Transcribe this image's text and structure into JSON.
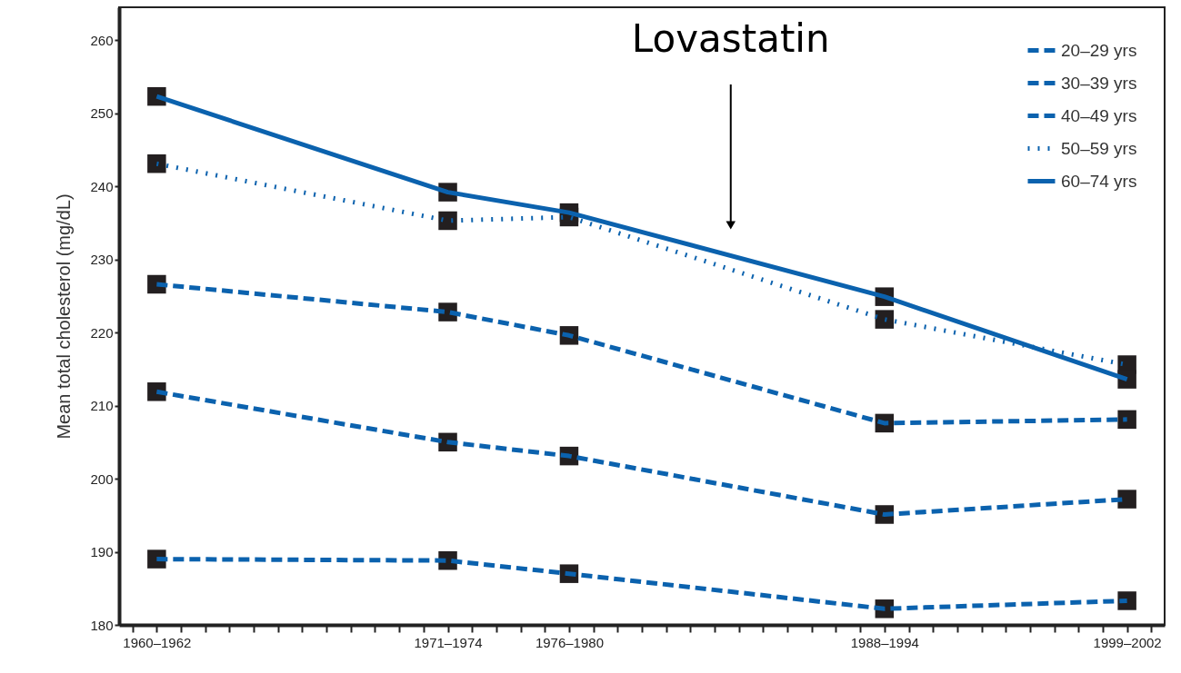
{
  "chart_data": {
    "type": "line",
    "ylabel": "Mean total cholesterol (mg/dL)",
    "categories": [
      null,
      "1960–1962",
      null,
      null,
      null,
      null,
      null,
      null,
      null,
      null,
      null,
      null,
      null,
      "1971–1974",
      null,
      null,
      null,
      null,
      "1976–1980",
      null,
      null,
      null,
      null,
      null,
      null,
      null,
      null,
      null,
      null,
      null,
      null,
      "1988–1994",
      null,
      null,
      null,
      null,
      null,
      null,
      null,
      null,
      null,
      "1999–2002",
      null
    ],
    "series": [
      {
        "name": "20–29 yrs",
        "color": "#0b62ae",
        "line_style": "dashed",
        "values": [
          null,
          189,
          null,
          null,
          null,
          null,
          null,
          null,
          null,
          null,
          null,
          null,
          null,
          188.8,
          null,
          null,
          null,
          null,
          187,
          null,
          null,
          null,
          null,
          null,
          null,
          null,
          null,
          null,
          null,
          null,
          null,
          182.2,
          null,
          null,
          null,
          null,
          null,
          null,
          null,
          null,
          null,
          183.3,
          null
        ]
      },
      {
        "name": "30–39 yrs",
        "color": "#0b62ae",
        "line_style": "dashed",
        "values": [
          null,
          211.9,
          null,
          null,
          null,
          null,
          null,
          null,
          null,
          null,
          null,
          null,
          null,
          205,
          null,
          null,
          null,
          null,
          203.1,
          null,
          null,
          null,
          null,
          null,
          null,
          null,
          null,
          null,
          null,
          null,
          null,
          195.1,
          null,
          null,
          null,
          null,
          null,
          null,
          null,
          null,
          null,
          197.2,
          null
        ]
      },
      {
        "name": "40–49 yrs",
        "color": "#0b62ae",
        "line_style": "dashed",
        "values": [
          null,
          226.6,
          null,
          null,
          null,
          null,
          null,
          null,
          null,
          null,
          null,
          null,
          null,
          222.8,
          null,
          null,
          null,
          null,
          219.6,
          null,
          null,
          null,
          null,
          null,
          null,
          null,
          null,
          null,
          null,
          null,
          null,
          207.6,
          null,
          null,
          null,
          null,
          null,
          null,
          null,
          null,
          null,
          208.1,
          null
        ]
      },
      {
        "name": "50–59 yrs",
        "color": "#0b62ae",
        "line_style": "dotted",
        "values": [
          null,
          243.1,
          null,
          null,
          null,
          null,
          null,
          null,
          null,
          null,
          null,
          null,
          null,
          235.3,
          null,
          null,
          null,
          null,
          235.8,
          null,
          null,
          null,
          null,
          null,
          null,
          null,
          null,
          null,
          null,
          null,
          null,
          221.8,
          null,
          null,
          null,
          null,
          null,
          null,
          null,
          null,
          null,
          215.6,
          null
        ]
      },
      {
        "name": "60–74 yrs",
        "color": "#0b62ae",
        "line_style": "solid",
        "values": [
          null,
          252.3,
          null,
          null,
          null,
          null,
          null,
          null,
          null,
          null,
          null,
          null,
          null,
          239.2,
          null,
          null,
          null,
          null,
          236.4,
          null,
          null,
          null,
          null,
          null,
          null,
          null,
          null,
          null,
          null,
          null,
          null,
          224.9,
          null,
          null,
          null,
          null,
          null,
          null,
          null,
          null,
          null,
          213.6,
          null
        ]
      }
    ],
    "marker": "square",
    "legend": "top right",
    "annotations": [
      "Lovastatin"
    ],
    "ylim": [
      180,
      264.5
    ],
    "yticks": [
      180,
      190,
      200,
      210,
      220,
      230,
      240,
      250,
      260
    ],
    "grid": false
  }
}
